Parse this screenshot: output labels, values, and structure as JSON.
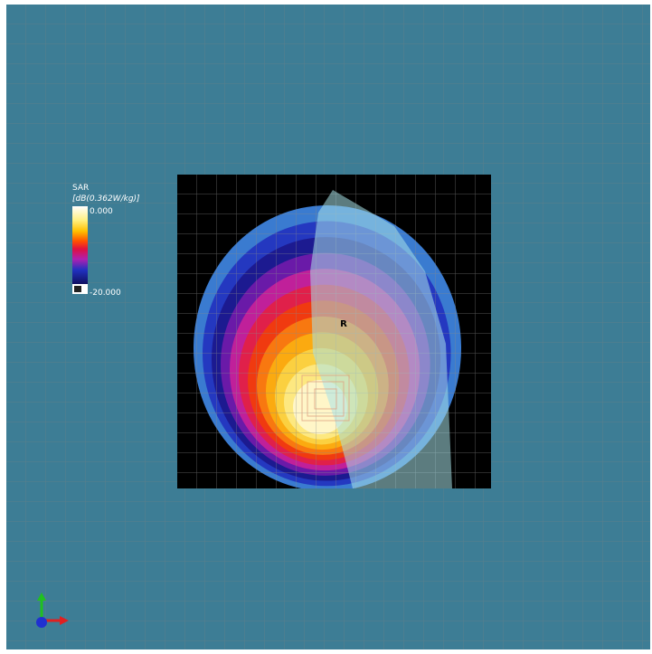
{
  "legend": {
    "title": "SAR",
    "unit": "[dB(0.362W/kg)]",
    "max_label": "0.000",
    "min_label": "-20.000"
  },
  "marker": {
    "label": "R"
  }
}
